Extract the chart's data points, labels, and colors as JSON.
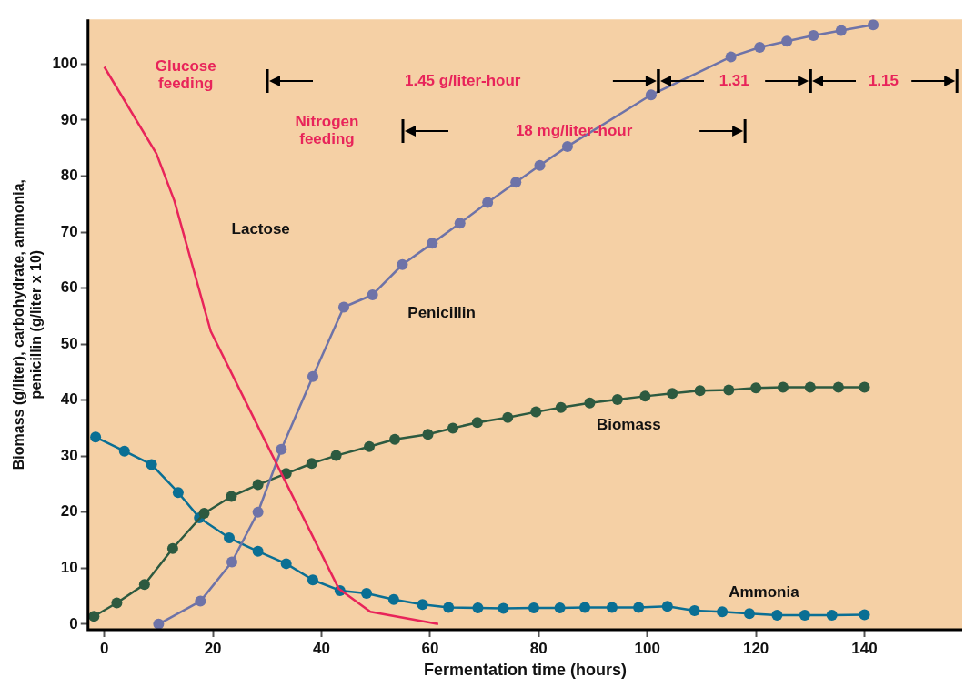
{
  "chart_data": {
    "type": "line",
    "xlabel": "Fermentation time (hours)",
    "ylabel": "Biomass (g/liter), carbohydrate, ammonia, penicillin (g/liter x 10)",
    "xlim": [
      -3,
      158
    ],
    "xticks": [
      0,
      20,
      40,
      60,
      80,
      100,
      120,
      140
    ],
    "ylim": [
      -1,
      108
    ],
    "yticks": [
      0,
      10,
      20,
      30,
      40,
      50,
      60,
      70,
      80,
      90,
      100
    ],
    "grid": false,
    "legend": false,
    "line_style": "solid",
    "series": [
      {
        "name": "Lactose",
        "color": "#e8245a",
        "marker": "none",
        "x": [
          0,
          9.6,
          12.9,
          19.6,
          30.4,
          43.2,
          49,
          61.5
        ],
        "values": [
          99.5,
          84,
          75.6,
          52.3,
          31.2,
          6.3,
          2.2,
          0
        ]
      },
      {
        "name": "Penicillin",
        "color": "#6e73a8",
        "marker": "circle",
        "x": [
          10,
          17.7,
          23.5,
          28.3,
          32.6,
          38.4,
          44.1,
          49.4,
          54.9,
          60.4,
          65.5,
          70.6,
          75.8,
          80.2,
          85.3,
          100.7,
          115.4,
          120.7,
          125.7,
          130.6,
          135.7,
          141.6
        ],
        "values": [
          0,
          4.1,
          11.1,
          20,
          31.2,
          44.2,
          56.6,
          58.8,
          64.2,
          68,
          71.6,
          75.3,
          78.9,
          81.9,
          85.3,
          94.5,
          101.3,
          103,
          104.1,
          105.1,
          106,
          107
        ]
      },
      {
        "name": "Biomass",
        "color": "#2d5a40",
        "marker": "circle",
        "x": [
          -1.9,
          2.3,
          7.4,
          12.6,
          18.4,
          23.4,
          28.3,
          33.5,
          38.2,
          42.7,
          48.8,
          53.5,
          59.6,
          64.2,
          68.7,
          74.3,
          79.5,
          84.1,
          89.4,
          94.5,
          99.6,
          104.6,
          109.7,
          115,
          120,
          125,
          130,
          135.2,
          140
        ],
        "values": [
          1.4,
          3.8,
          7.1,
          13.5,
          19.8,
          22.8,
          24.9,
          26.9,
          28.7,
          30.1,
          31.7,
          33,
          33.9,
          35,
          36,
          36.9,
          37.9,
          38.7,
          39.5,
          40.1,
          40.7,
          41.2,
          41.7,
          41.8,
          42.2,
          42.3,
          42.3,
          42.3,
          42.3
        ]
      },
      {
        "name": "Ammonia",
        "color": "#0a6f94",
        "marker": "circle",
        "x": [
          -1.6,
          3.7,
          8.7,
          13.6,
          17.5,
          23,
          28.3,
          33.5,
          38.4,
          43.4,
          48.3,
          53.3,
          58.6,
          63.4,
          68.8,
          73.5,
          79.1,
          83.9,
          88.5,
          93.5,
          98.4,
          103.7,
          108.7,
          113.8,
          118.8,
          123.9,
          129,
          134,
          140
        ],
        "values": [
          33.4,
          30.9,
          28.5,
          23.5,
          19,
          15.4,
          13,
          10.8,
          7.9,
          6,
          5.5,
          4.4,
          3.5,
          3,
          2.9,
          2.8,
          2.9,
          2.9,
          3,
          3,
          3,
          3.2,
          2.4,
          2.2,
          1.9,
          1.6,
          1.6,
          1.6,
          1.7
        ]
      }
    ],
    "annotations": [
      "Glucose feeding",
      "1.45 g/liter-hour",
      "1.31",
      "1.15",
      "Nitrogen feeding",
      "18 mg/liter-hour"
    ]
  }
}
